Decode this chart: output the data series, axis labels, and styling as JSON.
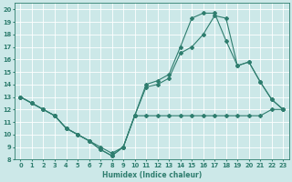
{
  "xlabel": "Humidex (Indice chaleur)",
  "bg_color": "#cce8e8",
  "grid_color": "#ffffff",
  "line_color": "#2e7d6e",
  "xlim": [
    -0.5,
    23.5
  ],
  "ylim": [
    8,
    20.5
  ],
  "xticks": [
    0,
    1,
    2,
    3,
    4,
    5,
    6,
    7,
    8,
    9,
    10,
    11,
    12,
    13,
    14,
    15,
    16,
    17,
    18,
    19,
    20,
    21,
    22,
    23
  ],
  "yticks": [
    8,
    9,
    10,
    11,
    12,
    13,
    14,
    15,
    16,
    17,
    18,
    19,
    20
  ],
  "series": [
    {
      "x": [
        0,
        1,
        2,
        3,
        4,
        5,
        6,
        7,
        8,
        9,
        10,
        11,
        12,
        13,
        14,
        15,
        16,
        17,
        18,
        19,
        20,
        21,
        22,
        23
      ],
      "y": [
        13,
        12.5,
        12,
        11.5,
        10.5,
        10,
        9.5,
        9,
        8.5,
        9.0,
        11.5,
        11.5,
        11.5,
        11.5,
        11.5,
        11.5,
        11.5,
        11.5,
        11.5,
        11.5,
        11.5,
        11.5,
        12.0,
        12.0
      ]
    },
    {
      "x": [
        0,
        1,
        2,
        3,
        4,
        5,
        6,
        7,
        8,
        9,
        10,
        11,
        12,
        13,
        14,
        15,
        16,
        17,
        18,
        19,
        20,
        21,
        22,
        23
      ],
      "y": [
        13,
        12.5,
        12,
        11.5,
        10.5,
        10,
        9.5,
        8.8,
        8.3,
        9.0,
        11.5,
        14.0,
        14.3,
        14.8,
        17.0,
        19.3,
        19.7,
        19.7,
        17.5,
        15.5,
        15.8,
        14.2,
        12.8,
        12.0
      ]
    },
    {
      "x": [
        0,
        1,
        2,
        3,
        4,
        5,
        6,
        7,
        8,
        9,
        10,
        11,
        12,
        13,
        14,
        15,
        16,
        17,
        18,
        19,
        20,
        21,
        22,
        23
      ],
      "y": [
        13,
        12.5,
        12,
        11.5,
        10.5,
        10,
        9.5,
        8.8,
        8.3,
        9.0,
        11.5,
        13.8,
        14.0,
        14.5,
        16.5,
        17.0,
        18.0,
        19.5,
        19.3,
        15.5,
        15.8,
        14.2,
        12.8,
        12.0
      ]
    }
  ]
}
